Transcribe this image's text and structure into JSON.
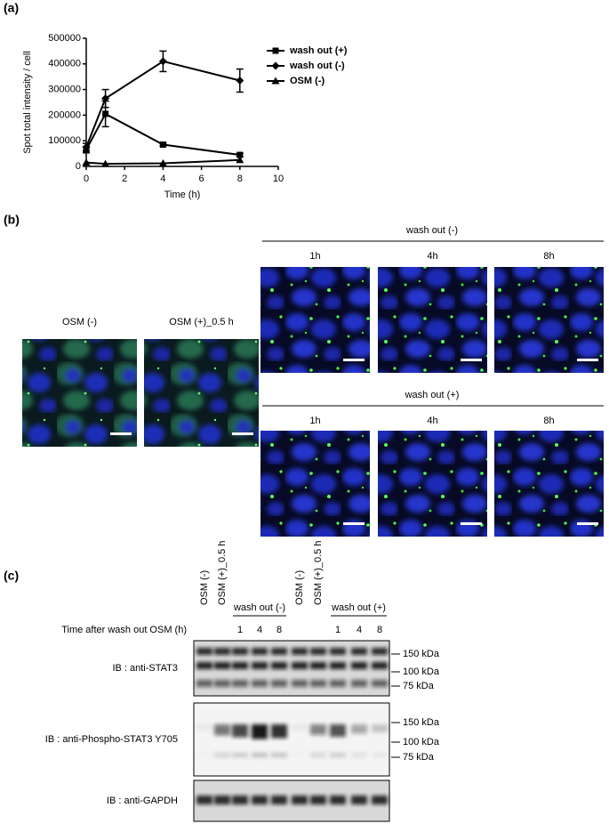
{
  "panel_labels": [
    "(a)",
    "(b)",
    "(c)"
  ],
  "chart_data": {
    "type": "line",
    "y_label": "Spot total intensity / cell",
    "x_label": "Time (h)",
    "x": [
      0,
      1,
      4,
      8
    ],
    "xlim": [
      0,
      10
    ],
    "xticks": [
      0,
      2,
      4,
      6,
      8,
      10
    ],
    "ylim": [
      0,
      500000
    ],
    "yticks": [
      0,
      100000,
      200000,
      300000,
      400000,
      500000
    ],
    "legend": "upper right",
    "series": [
      {
        "name": "wash out (+)",
        "marker": "square",
        "color": "#000000",
        "values": [
          65000,
          205000,
          85000,
          45000
        ],
        "errors": [
          12000,
          50000,
          5000,
          6000
        ]
      },
      {
        "name": "wash out (-)",
        "marker": "diamond",
        "color": "#000000",
        "values": [
          75000,
          265000,
          410000,
          335000
        ],
        "errors": [
          15000,
          35000,
          40000,
          45000
        ]
      },
      {
        "name": "OSM (-)",
        "marker": "triangle",
        "color": "#000000",
        "values": [
          15000,
          10000,
          12000,
          25000
        ]
      }
    ]
  },
  "microscopy": {
    "single": [
      "OSM (-)",
      "OSM (+)_0.5 h"
    ],
    "groups": [
      {
        "title": "wash out (-)",
        "times": [
          "1h",
          "4h",
          "8h"
        ]
      },
      {
        "title": "wash out (+)",
        "times": [
          "1h",
          "4h",
          "8h"
        ]
      }
    ]
  },
  "blot": {
    "row_label": "Time after wash out OSM (h)",
    "groups": [
      {
        "single": [
          "OSM (-)",
          "OSM (+)_0.5 h"
        ],
        "title": "wash out (-)",
        "times": [
          "1",
          "4",
          "8"
        ]
      },
      {
        "single": [
          "OSM (-)",
          "OSM (+)_0.5 h"
        ],
        "title": "wash out (+)",
        "times": [
          "1",
          "4",
          "8"
        ]
      }
    ],
    "panels": [
      {
        "label": "IB : anti-STAT3",
        "markers": [
          "150 kDa",
          "100 kDa",
          "75 kDa"
        ]
      },
      {
        "label": "IB : anti-Phospho-STAT3 Y705",
        "markers": [
          "150 kDa",
          "100 kDa",
          "75 kDa"
        ]
      },
      {
        "label": "IB : anti-GAPDH"
      }
    ]
  }
}
